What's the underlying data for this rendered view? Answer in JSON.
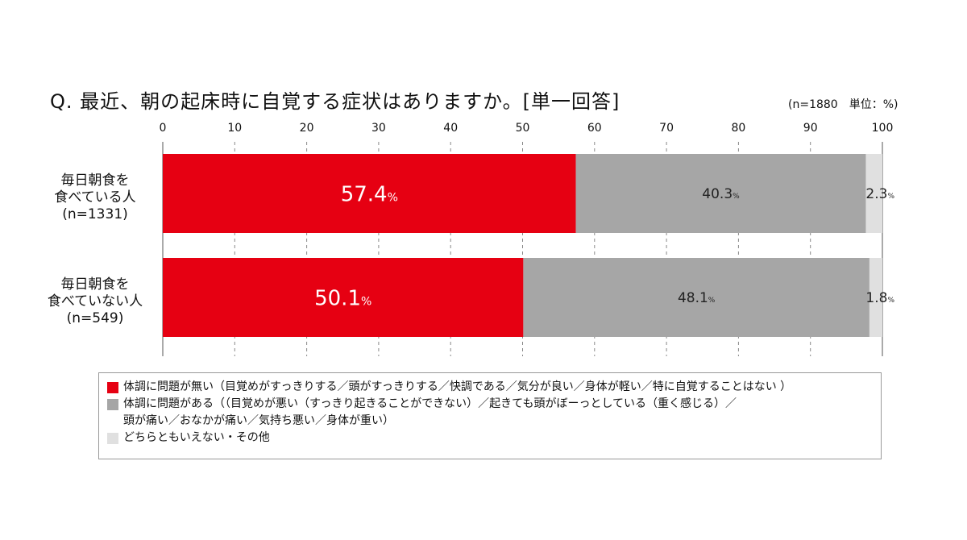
{
  "title": "Q.  最近、朝の起床時に自覚する症状はありますか。[単一回答]",
  "unit_note": "(n=1880　単位：%)",
  "colors": {
    "no_problem": "#e60012",
    "problem": "#a6a6a6",
    "other": "#e0e0e0",
    "grid": "#888888"
  },
  "chart_data": {
    "type": "bar",
    "orientation": "horizontal",
    "stacked": true,
    "title": "Q.  最近、朝の起床時に自覚する症状はありますか。[単一回答]",
    "xlim": [
      0,
      100
    ],
    "x_ticks": [
      0,
      10,
      20,
      30,
      40,
      50,
      60,
      70,
      80,
      90,
      100
    ],
    "value_suffix": "%",
    "categories": [
      {
        "lines": [
          "毎日朝食を",
          "食べている人",
          "(n=1331)"
        ]
      },
      {
        "lines": [
          "毎日朝食を",
          "食べていない人",
          "(n=549)"
        ]
      }
    ],
    "series": [
      {
        "key": "no_problem",
        "values": [
          57.4,
          50.1
        ],
        "labels": [
          "57.4",
          "50.1"
        ]
      },
      {
        "key": "problem",
        "values": [
          40.3,
          48.1
        ],
        "labels": [
          "40.3",
          "48.1"
        ]
      },
      {
        "key": "other",
        "values": [
          2.3,
          1.8
        ],
        "labels": [
          "2.3",
          "1.8"
        ]
      }
    ],
    "grid": true,
    "legend_position": "bottom"
  },
  "legend": {
    "items": [
      {
        "key": "no_problem",
        "lines": [
          "体調に問題が無い（目覚めがすっきりする／頭がすっきりする／快調である／気分が良い／身体が軽い／特に自覚することはない ）"
        ]
      },
      {
        "key": "problem",
        "lines": [
          "体調に問題がある（（目覚めが悪い（すっきり起きることができない）／起きても頭がぼーっとしている（重く感じる）／",
          "頭が痛い／おなかが痛い／気持ち悪い／身体が重い）"
        ]
      },
      {
        "key": "other",
        "lines": [
          "どちらともいえない・その他"
        ]
      }
    ]
  }
}
